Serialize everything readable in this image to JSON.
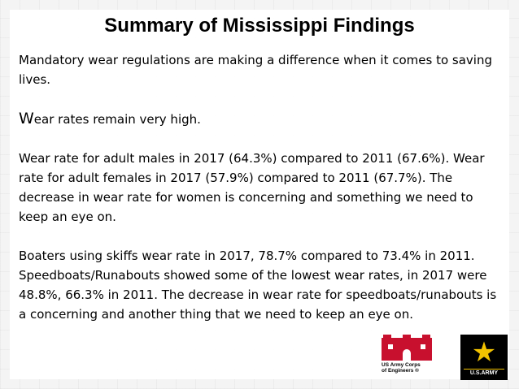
{
  "slide": {
    "title": "Summary of Mississippi Findings",
    "paragraphs": [
      "Mandatory wear regulations are making a difference when it comes to saving lives.",
      "Wear rates remain very high.",
      "Wear rate for adult males in 2017 (64.3%) compared to 2011 (67.6%). Wear rate for adult females in 2017 (57.9%) compared to 2011 (67.7%).  The decrease in wear rate for women is concerning and something we need to keep an eye on.",
      "Boaters using skiffs wear rate in 2017, 78.7% compared to 73.4% in 2011. Speedboats/Runabouts showed some of the lowest wear rates, in 2017 were 48.8%, 66.3% in 2011. The decrease in wear rate for speedboats/runabouts is a concerning and another thing that we need to keep an eye on."
    ]
  },
  "logos": {
    "usace_line1": "US Army Corps",
    "usace_line2": "of Engineers ®",
    "army_label": "U.S.ARMY",
    "usace_color": "#c8102e",
    "army_star_color": "#f2c200"
  }
}
